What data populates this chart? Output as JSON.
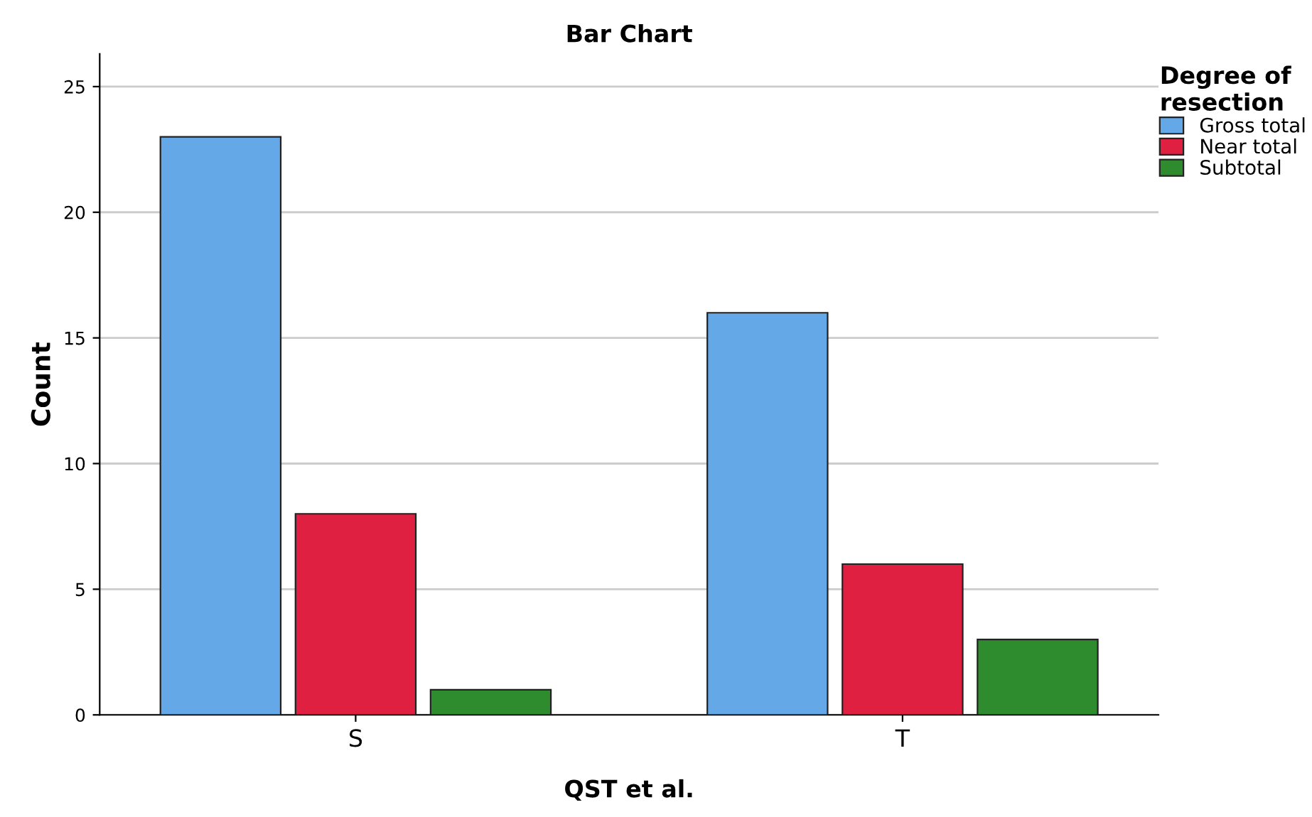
{
  "chart_data": {
    "type": "bar",
    "title": "Bar Chart",
    "xlabel": "QST et al.",
    "ylabel": "Count",
    "legend_title": "Degree of\nresection",
    "categories": [
      "S",
      "T"
    ],
    "series": [
      {
        "name": "Gross total",
        "color": "#64a8e8",
        "values": [
          23,
          16
        ]
      },
      {
        "name": "Near total",
        "color": "#e02040",
        "values": [
          8,
          6
        ]
      },
      {
        "name": "Subtotal",
        "color": "#2e8b2e",
        "values": [
          1,
          3
        ]
      }
    ],
    "ylim": [
      0,
      26.3
    ],
    "yticks": [
      0,
      5,
      10,
      15,
      20,
      25
    ],
    "grid": "y",
    "legend": "top right"
  }
}
